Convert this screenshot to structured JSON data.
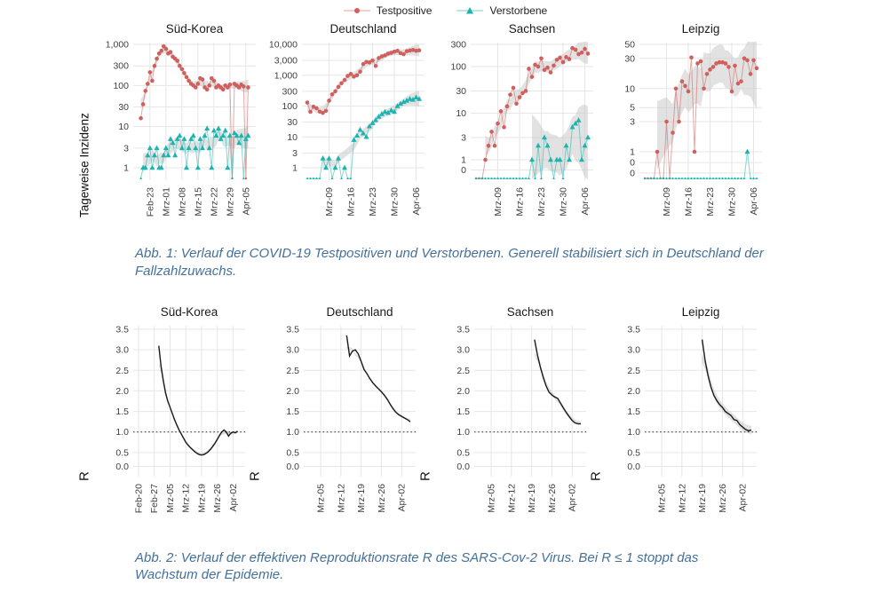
{
  "legend": {
    "items": [
      {
        "label": "Testpositive",
        "marker": "circle",
        "color": "#d0605e"
      },
      {
        "label": "Verstorbene",
        "marker": "triangle",
        "color": "#1db4af"
      }
    ]
  },
  "figure1": {
    "y_axis_label": "Tageweise Inzidenz",
    "caption": "Abb. 1: Verlauf der COVID-19 Testpositiven und Verstorbenen. Generell stabilisiert sich in Deutschland der Fallzahlzuwachs."
  },
  "figure2": {
    "caption": "Abb. 2: Verlauf der effektiven Reproduktionsrate R des SARS-Cov-2 Virus. Bei R ≤ 1 stoppt das Wachstum der Epidemie."
  },
  "colors": {
    "testpositive": "#d0605e",
    "verstorbene": "#1db4af",
    "ribbon": "#c6c6c6",
    "grid": "#e6e6e6",
    "r_line": "#1a1a1a",
    "caption_text": "#44719b"
  },
  "chart_data": [
    {
      "row": 1,
      "type": "line",
      "scale": "pseudo-log",
      "title": "Süd-Korea",
      "ymax": 1000,
      "yticks": [
        1000,
        300,
        100,
        30,
        10,
        3,
        1
      ],
      "xlim": [
        0,
        49
      ],
      "xticks": [
        {
          "x": 5,
          "label": "Feb-23"
        },
        {
          "x": 12,
          "label": "Mrz-01"
        },
        {
          "x": 19,
          "label": "Mrz-08"
        },
        {
          "x": 26,
          "label": "Mrz-15"
        },
        {
          "x": 33,
          "label": "Mrz-22"
        },
        {
          "x": 40,
          "label": "Mrz-29"
        },
        {
          "x": 47,
          "label": "Apr-05"
        }
      ],
      "series": [
        {
          "name": "Testpositive",
          "color": "#d0605e",
          "marker": "circle",
          "band": 0.07,
          "start": 1,
          "values": [
            16,
            35,
            74,
            110,
            210,
            130,
            300,
            450,
            600,
            700,
            900,
            780,
            600,
            650,
            500,
            450,
            400,
            300,
            250,
            200,
            160,
            130,
            110,
            100,
            90,
            110,
            150,
            140,
            90,
            80,
            100,
            150,
            130,
            90,
            100,
            90,
            80,
            100,
            90,
            105,
            0,
            110,
            100,
            90,
            105,
            95,
            0,
            90
          ]
        },
        {
          "name": "Verstorbene",
          "color": "#1db4af",
          "marker": "triangle",
          "band": 0.13,
          "start": 1,
          "values": [
            0,
            1,
            1,
            2,
            3,
            1,
            2,
            3,
            1,
            1,
            2,
            3,
            2,
            5,
            4,
            2,
            5,
            6,
            3,
            5,
            1,
            3,
            5,
            6,
            3,
            1,
            5,
            3,
            6,
            9,
            3,
            1,
            8,
            6,
            9,
            5,
            6,
            8,
            1,
            6,
            0,
            7,
            6,
            4,
            6,
            0,
            5,
            6
          ]
        }
      ]
    },
    {
      "row": 1,
      "type": "line",
      "scale": "pseudo-log",
      "title": "Deutschland",
      "ymax": 10000,
      "yticks": [
        10000,
        3000,
        1000,
        300,
        100,
        30,
        10,
        3,
        1
      ],
      "xlim": [
        0,
        36
      ],
      "xticks": [
        {
          "x": 7,
          "label": "Mrz-09"
        },
        {
          "x": 14,
          "label": "Mrz-16"
        },
        {
          "x": 21,
          "label": "Mrz-23"
        },
        {
          "x": 28,
          "label": "Mrz-30"
        },
        {
          "x": 35,
          "label": "Apr-06"
        }
      ],
      "series": [
        {
          "name": "Testpositive",
          "color": "#d0605e",
          "marker": "circle",
          "band": 0.09,
          "start": 0,
          "values": [
            130,
            65,
            95,
            85,
            66,
            60,
            70,
            150,
            240,
            300,
            420,
            550,
            700,
            950,
            1100,
            900,
            1000,
            1300,
            2300,
            2700,
            2600,
            3000,
            2000,
            3600,
            4100,
            4400,
            5000,
            5300,
            5800,
            6200,
            5200,
            4800,
            6000,
            6300,
            6600,
            6200,
            6400
          ]
        },
        {
          "name": "Verstorbene",
          "color": "#1db4af",
          "marker": "triangle",
          "band": 0.12,
          "start": 0,
          "values": [
            0,
            0,
            0,
            0,
            0,
            2,
            1,
            2,
            0,
            1,
            2,
            0,
            1,
            0,
            0,
            8,
            11,
            17,
            13,
            10,
            22,
            28,
            35,
            45,
            55,
            65,
            60,
            72,
            65,
            100,
            120,
            135,
            150,
            170,
            160,
            190,
            170
          ]
        }
      ]
    },
    {
      "row": 1,
      "type": "line",
      "scale": "pseudo-log",
      "title": "Sachsen",
      "ymax": 300,
      "yticks": [
        300,
        100,
        30,
        10,
        3,
        1,
        0
      ],
      "xlim": [
        0,
        36
      ],
      "xticks": [
        {
          "x": 7,
          "label": "Mrz-09"
        },
        {
          "x": 14,
          "label": "Mrz-16"
        },
        {
          "x": 21,
          "label": "Mrz-23"
        },
        {
          "x": 28,
          "label": "Mrz-30"
        },
        {
          "x": 35,
          "label": "Apr-06"
        }
      ],
      "series": [
        {
          "name": "Testpositive",
          "color": "#d0605e",
          "marker": "circle",
          "band": 0.12,
          "start": 0,
          "values": [
            0,
            0,
            0,
            1,
            2,
            4,
            2,
            6,
            11,
            5,
            14,
            25,
            35,
            16,
            22,
            27,
            30,
            90,
            60,
            110,
            100,
            150,
            85,
            95,
            75,
            105,
            140,
            155,
            125,
            160,
            145,
            250,
            230,
            185,
            200,
            240,
            190
          ]
        },
        {
          "name": "Verstorbene",
          "color": "#1db4af",
          "marker": "triangle",
          "band": 0.4,
          "start": 0,
          "values": [
            0,
            0,
            0,
            0,
            0,
            0,
            0,
            0,
            0,
            0,
            0,
            0,
            0,
            0,
            0,
            0,
            0,
            0,
            1,
            0,
            2,
            0,
            3,
            2,
            1,
            0,
            1,
            1,
            0,
            2,
            1,
            5,
            6,
            7,
            1,
            2,
            3
          ]
        }
      ]
    },
    {
      "row": 1,
      "type": "line",
      "scale": "pseudo-log",
      "title": "Leipzig",
      "ymax": 50,
      "yticks": [
        50,
        30,
        10,
        5,
        3,
        1,
        0,
        0
      ],
      "xlim": [
        0,
        36
      ],
      "xticks": [
        {
          "x": 7,
          "label": "Mrz-09"
        },
        {
          "x": 14,
          "label": "Mrz-16"
        },
        {
          "x": 21,
          "label": "Mrz-23"
        },
        {
          "x": 28,
          "label": "Mrz-30"
        },
        {
          "x": 35,
          "label": "Apr-06"
        }
      ],
      "series": [
        {
          "name": "Testpositive",
          "color": "#d0605e",
          "marker": "circle",
          "band": 0.3,
          "start": 0,
          "values": [
            0,
            0,
            0,
            0,
            1,
            0,
            0,
            3,
            0,
            2,
            10,
            3,
            13,
            11,
            9,
            31,
            1,
            25,
            27,
            10,
            17,
            20,
            22,
            25,
            26,
            26,
            25,
            22,
            9,
            23,
            12,
            13,
            30,
            28,
            17,
            28,
            21
          ]
        },
        {
          "name": "Verstorbene",
          "color": "#1db4af",
          "marker": "triangle",
          "band": 0,
          "start": 0,
          "values": [
            0,
            0,
            0,
            0,
            0,
            0,
            0,
            0,
            0,
            0,
            0,
            0,
            0,
            0,
            0,
            0,
            0,
            0,
            0,
            0,
            0,
            0,
            0,
            0,
            0,
            0,
            0,
            0,
            0,
            0,
            0,
            0,
            0,
            1,
            0,
            0,
            0
          ]
        }
      ]
    },
    {
      "row": 2,
      "type": "line",
      "scale": "linear",
      "title": "Süd-Korea",
      "ylabel": "R",
      "ylim": [
        0,
        3.5
      ],
      "yticks": [
        3.5,
        3.0,
        2.5,
        2.0,
        1.5,
        1.0,
        0.5,
        0.0
      ],
      "refline": 1.0,
      "xlim": [
        0,
        45
      ],
      "xticks": [
        {
          "x": 0,
          "label": "Feb-20"
        },
        {
          "x": 7,
          "label": "Feb-27"
        },
        {
          "x": 14,
          "label": "Mrz-05"
        },
        {
          "x": 21,
          "label": "Mrz-12"
        },
        {
          "x": 28,
          "label": "Mrz-19"
        },
        {
          "x": 35,
          "label": "Mrz-26"
        },
        {
          "x": 42,
          "label": "Apr-02"
        }
      ],
      "series": [
        {
          "name": "R",
          "color": "#1a1a1a",
          "band": 0.035,
          "start": 9,
          "values": [
            3.1,
            2.6,
            2.25,
            1.95,
            1.75,
            1.6,
            1.45,
            1.3,
            1.17,
            1.05,
            0.95,
            0.85,
            0.75,
            0.68,
            0.62,
            0.57,
            0.52,
            0.48,
            0.45,
            0.44,
            0.45,
            0.48,
            0.52,
            0.58,
            0.65,
            0.73,
            0.82,
            0.92,
            1.0,
            1.05,
            1.0,
            0.9,
            0.97,
            1.0,
            0.98,
            1.02
          ]
        }
      ]
    },
    {
      "row": 2,
      "type": "line",
      "scale": "linear",
      "title": "Deutschland",
      "ylabel": "R",
      "ylim": [
        0,
        3.5
      ],
      "yticks": [
        3.5,
        3.0,
        2.5,
        2.0,
        1.5,
        1.0,
        0.5,
        0.0
      ],
      "refline": 1.0,
      "xlim": [
        0,
        35
      ],
      "xticks": [
        {
          "x": 4,
          "label": "Mrz-05"
        },
        {
          "x": 11,
          "label": "Mrz-12"
        },
        {
          "x": 18,
          "label": "Mrz-19"
        },
        {
          "x": 25,
          "label": "Mrz-26"
        },
        {
          "x": 32,
          "label": "Apr-02"
        }
      ],
      "series": [
        {
          "name": "R",
          "color": "#1a1a1a",
          "band": 0.025,
          "start": 13,
          "values": [
            3.35,
            2.85,
            2.97,
            3.0,
            2.9,
            2.72,
            2.52,
            2.42,
            2.3,
            2.2,
            2.12,
            2.05,
            1.98,
            1.9,
            1.8,
            1.68,
            1.57,
            1.48,
            1.42,
            1.38,
            1.34,
            1.3,
            1.25
          ]
        }
      ]
    },
    {
      "row": 2,
      "type": "line",
      "scale": "linear",
      "title": "Sachsen",
      "ylabel": "R",
      "ylim": [
        0,
        3.5
      ],
      "yticks": [
        3.5,
        3.0,
        2.5,
        2.0,
        1.5,
        1.0,
        0.5,
        0.0
      ],
      "refline": 1.0,
      "xlim": [
        0,
        35
      ],
      "xticks": [
        {
          "x": 4,
          "label": "Mrz-05"
        },
        {
          "x": 11,
          "label": "Mrz-12"
        },
        {
          "x": 18,
          "label": "Mrz-19"
        },
        {
          "x": 25,
          "label": "Mrz-26"
        },
        {
          "x": 32,
          "label": "Apr-02"
        }
      ],
      "series": [
        {
          "name": "R",
          "color": "#1a1a1a",
          "band": 0.05,
          "start": 19,
          "values": [
            3.25,
            2.88,
            2.58,
            2.33,
            2.12,
            1.97,
            1.9,
            1.85,
            1.82,
            1.7,
            1.58,
            1.47,
            1.37,
            1.28,
            1.22,
            1.2,
            1.2
          ]
        }
      ]
    },
    {
      "row": 2,
      "type": "line",
      "scale": "linear",
      "title": "Leipzig",
      "ylabel": "R",
      "ylim": [
        0,
        3.5
      ],
      "yticks": [
        3.5,
        3.0,
        2.5,
        2.0,
        1.5,
        1.0,
        0.5,
        0.0
      ],
      "refline": 1.0,
      "xlim": [
        0,
        35
      ],
      "xticks": [
        {
          "x": 4,
          "label": "Mrz-05"
        },
        {
          "x": 11,
          "label": "Mrz-12"
        },
        {
          "x": 18,
          "label": "Mrz-19"
        },
        {
          "x": 25,
          "label": "Mrz-26"
        },
        {
          "x": 32,
          "label": "Apr-02"
        }
      ],
      "series": [
        {
          "name": "R",
          "color": "#1a1a1a",
          "band": 0.1,
          "start": 18,
          "values": [
            3.25,
            2.75,
            2.38,
            2.1,
            1.9,
            1.77,
            1.67,
            1.6,
            1.5,
            1.45,
            1.4,
            1.3,
            1.28,
            1.18,
            1.12,
            1.06,
            1.03,
            1.05
          ]
        }
      ]
    }
  ]
}
